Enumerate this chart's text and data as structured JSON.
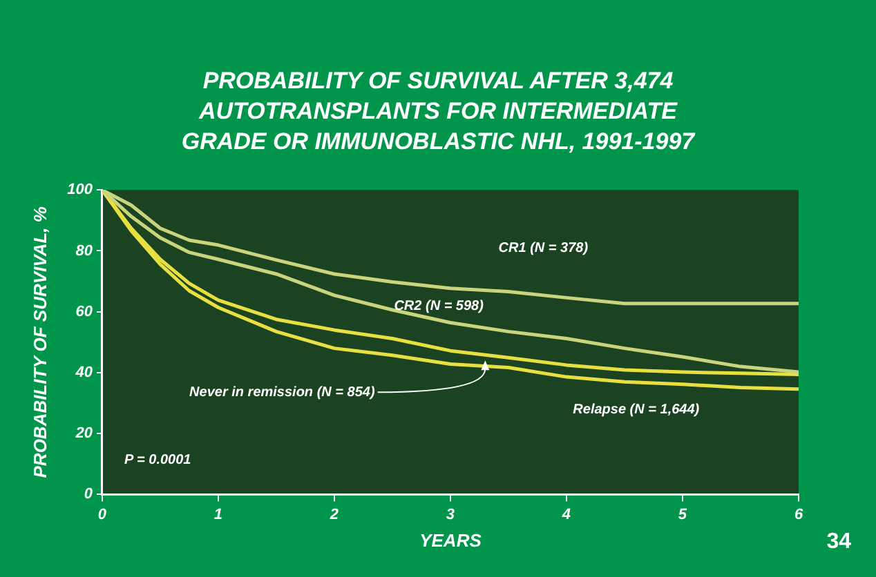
{
  "chart_data": {
    "type": "line",
    "title": "PROBABILITY OF SURVIVAL AFTER 3,474 AUTOTRANSPLANTS FOR INTERMEDIATE GRADE OR IMMUNOBLASTIC NHL, 1991-1997",
    "xlabel": "YEARS",
    "ylabel": "PROBABILITY OF SURVIVAL, %",
    "x": [
      0,
      0.25,
      0.5,
      0.75,
      1,
      1.5,
      2,
      2.5,
      3,
      3.5,
      4,
      4.5,
      5,
      5.5,
      6
    ],
    "series": [
      {
        "name": "CR1 (N = 378)",
        "color": "#c9d47c",
        "values": [
          100,
          95,
          87.4,
          83.5,
          81.9,
          77,
          72.4,
          69.8,
          67.7,
          66.6,
          64.6,
          62.7,
          62.7,
          62.7,
          62.7
        ]
      },
      {
        "name": "CR2 (N = 598)",
        "color": "#c9d47c",
        "values": [
          100,
          91.3,
          84.3,
          79.5,
          77.2,
          72.4,
          65.4,
          60.6,
          56.4,
          53.5,
          51.2,
          48,
          45.2,
          42,
          40.2
        ]
      },
      {
        "name": "Never in remission (N = 854)",
        "color": "#e8e040",
        "values": [
          100,
          87.4,
          77.2,
          69.3,
          63.8,
          57.5,
          54,
          51.2,
          47.2,
          44.9,
          42.5,
          40.9,
          40.2,
          39.8,
          39.4
        ]
      },
      {
        "name": "Relapse (N = 1,644)",
        "color": "#e8e040",
        "values": [
          100,
          86.6,
          75.6,
          66.9,
          61.4,
          53.5,
          48,
          45.7,
          42.8,
          41.7,
          38.6,
          37,
          36.2,
          35.1,
          34.6
        ]
      }
    ],
    "xlim": [
      0,
      6
    ],
    "xticks": [
      0,
      1,
      2,
      3,
      4,
      5,
      6
    ],
    "ylim": [
      0,
      100
    ],
    "yticks": [
      0,
      20,
      40,
      60,
      80,
      100
    ],
    "grid": false,
    "legend": false,
    "marker": "none",
    "line_style": "solid",
    "annotations": [
      "P = 0.0001",
      "34"
    ]
  }
}
